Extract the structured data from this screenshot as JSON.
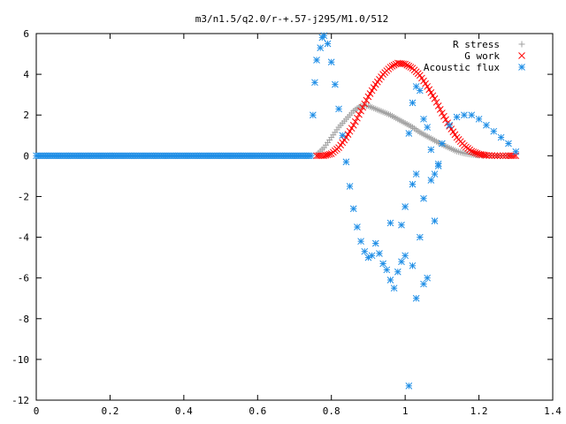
{
  "chart_data": {
    "type": "scatter",
    "title": "m3/n1.5/q2.0/r-+.57-j295/M1.0/512",
    "xlabel": "",
    "ylabel": "",
    "xlim": [
      0,
      1.4
    ],
    "ylim": [
      -12,
      6
    ],
    "grid": false,
    "legend_position": "top-right",
    "x_ticks": [
      "0",
      "0.2",
      "0.4",
      "0.6",
      "0.8",
      "1",
      "1.2",
      "1.4"
    ],
    "y_ticks": [
      "6",
      "4",
      "2",
      "0",
      "-2",
      "-4",
      "-6",
      "-8",
      "-10",
      "-12"
    ],
    "series": [
      {
        "name": "R stress",
        "marker": "+",
        "color": "#a0a0a0",
        "points": [
          [
            0.76,
            0.05
          ],
          [
            0.78,
            0.4
          ],
          [
            0.8,
            0.9
          ],
          [
            0.82,
            1.4
          ],
          [
            0.84,
            1.8
          ],
          [
            0.86,
            2.2
          ],
          [
            0.88,
            2.45
          ],
          [
            0.9,
            2.45
          ],
          [
            0.92,
            2.3
          ],
          [
            0.94,
            2.15
          ],
          [
            0.96,
            2.0
          ],
          [
            0.98,
            1.8
          ],
          [
            1.0,
            1.6
          ],
          [
            1.02,
            1.4
          ],
          [
            1.04,
            1.15
          ],
          [
            1.06,
            0.95
          ],
          [
            1.08,
            0.75
          ],
          [
            1.1,
            0.55
          ],
          [
            1.12,
            0.38
          ],
          [
            1.14,
            0.22
          ],
          [
            1.16,
            0.12
          ],
          [
            1.18,
            0.06
          ],
          [
            1.2,
            0.02
          ],
          [
            1.24,
            0.0
          ],
          [
            1.28,
            0.0
          ]
        ]
      },
      {
        "name": "G work",
        "marker": "x",
        "color": "#ff0000",
        "points": [
          [
            0.76,
            0.0
          ],
          [
            0.78,
            0.0
          ],
          [
            0.8,
            0.1
          ],
          [
            0.82,
            0.4
          ],
          [
            0.84,
            0.9
          ],
          [
            0.86,
            1.5
          ],
          [
            0.88,
            2.2
          ],
          [
            0.9,
            2.9
          ],
          [
            0.92,
            3.5
          ],
          [
            0.94,
            4.0
          ],
          [
            0.96,
            4.35
          ],
          [
            0.98,
            4.55
          ],
          [
            1.0,
            4.5
          ],
          [
            1.02,
            4.3
          ],
          [
            1.04,
            3.95
          ],
          [
            1.06,
            3.4
          ],
          [
            1.08,
            2.8
          ],
          [
            1.1,
            2.1
          ],
          [
            1.12,
            1.45
          ],
          [
            1.14,
            0.9
          ],
          [
            1.16,
            0.5
          ],
          [
            1.18,
            0.22
          ],
          [
            1.2,
            0.08
          ],
          [
            1.22,
            0.02
          ],
          [
            1.25,
            0.0
          ],
          [
            1.28,
            0.0
          ],
          [
            1.3,
            0.0
          ]
        ]
      },
      {
        "name": "Acoustic flux",
        "marker": "*",
        "color": "#1f8ee6",
        "points": [
          [
            0.75,
            2.0
          ],
          [
            0.755,
            3.6
          ],
          [
            0.76,
            4.7
          ],
          [
            0.77,
            5.3
          ],
          [
            0.775,
            5.8
          ],
          [
            0.78,
            5.9
          ],
          [
            0.79,
            5.5
          ],
          [
            0.8,
            4.6
          ],
          [
            0.81,
            3.5
          ],
          [
            0.82,
            2.3
          ],
          [
            0.83,
            1.0
          ],
          [
            0.84,
            -0.3
          ],
          [
            0.85,
            -1.5
          ],
          [
            0.86,
            -2.6
          ],
          [
            0.87,
            -3.5
          ],
          [
            0.88,
            -4.2
          ],
          [
            0.89,
            -4.7
          ],
          [
            0.9,
            -5.0
          ],
          [
            0.91,
            -4.9
          ],
          [
            0.92,
            -4.3
          ],
          [
            0.93,
            -4.8
          ],
          [
            0.94,
            -5.3
          ],
          [
            0.95,
            -5.6
          ],
          [
            0.96,
            -6.1
          ],
          [
            0.97,
            -6.5
          ],
          [
            0.98,
            -5.7
          ],
          [
            0.99,
            -5.2
          ],
          [
            1.0,
            -4.9
          ],
          [
            1.01,
            -11.3
          ],
          [
            1.02,
            -5.4
          ],
          [
            1.03,
            -7.0
          ],
          [
            1.04,
            -4.0
          ],
          [
            1.05,
            -6.3
          ],
          [
            1.06,
            -6.0
          ],
          [
            0.96,
            -3.3
          ],
          [
            0.99,
            -3.4
          ],
          [
            1.0,
            -2.5
          ],
          [
            1.02,
            -1.4
          ],
          [
            1.03,
            -0.9
          ],
          [
            1.05,
            -2.1
          ],
          [
            1.07,
            -1.2
          ],
          [
            1.08,
            -3.2
          ],
          [
            1.09,
            -0.5
          ],
          [
            1.01,
            1.1
          ],
          [
            1.02,
            2.6
          ],
          [
            1.03,
            3.4
          ],
          [
            1.04,
            3.2
          ],
          [
            1.05,
            1.8
          ],
          [
            1.06,
            1.4
          ],
          [
            1.07,
            0.3
          ],
          [
            1.08,
            -0.9
          ],
          [
            1.09,
            -0.4
          ],
          [
            1.1,
            0.6
          ],
          [
            1.12,
            1.5
          ],
          [
            1.14,
            1.9
          ],
          [
            1.16,
            2.0
          ],
          [
            1.18,
            2.0
          ],
          [
            1.2,
            1.8
          ],
          [
            1.22,
            1.5
          ],
          [
            1.24,
            1.2
          ],
          [
            1.26,
            0.9
          ],
          [
            1.28,
            0.6
          ],
          [
            1.3,
            0.2
          ]
        ]
      }
    ],
    "zero_segment": {
      "from": 0,
      "to": 0.75,
      "value": 0
    }
  }
}
